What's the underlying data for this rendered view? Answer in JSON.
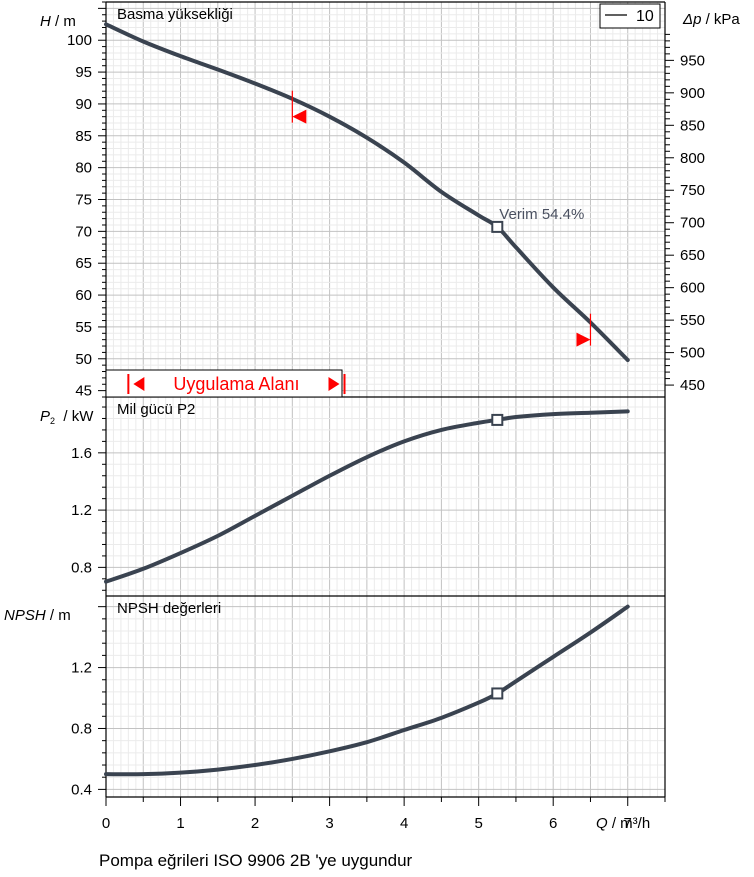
{
  "colors": {
    "curve": "#3a4350",
    "grid": "#d0d0d0",
    "axis": "#000000",
    "range_marker": "#ff0000"
  },
  "legend": {
    "label": "10"
  },
  "footer": {
    "text": "Pompa eğrileri ISO 9906 2B 'ye uygundur"
  },
  "chart_data": [
    {
      "type": "line",
      "title": "Basma yüksekliği",
      "ylabel_var": "H",
      "ylabel_unit": "/ m",
      "y2label_var": "Δp",
      "y2label_unit": "/ kPa",
      "xlim": [
        0,
        7.5
      ],
      "ylim": [
        44,
        106
      ],
      "y_ticks": [
        45,
        50,
        55,
        60,
        65,
        70,
        75,
        80,
        85,
        90,
        95,
        100
      ],
      "y2_ticks": [
        450,
        500,
        550,
        600,
        650,
        700,
        750,
        800,
        850,
        900,
        950
      ],
      "series": [
        {
          "name": "10",
          "x": [
            0,
            0.5,
            1,
            1.5,
            2,
            2.5,
            3,
            3.5,
            4,
            4.5,
            5,
            5.25,
            5.5,
            6,
            6.5,
            7
          ],
          "y": [
            102.5,
            99.8,
            97.5,
            95.4,
            93.2,
            90.8,
            88,
            84.7,
            80.8,
            76.2,
            72.5,
            70.7,
            67.5,
            61.2,
            55.7,
            49.8
          ]
        }
      ],
      "operating_point": {
        "x": 5.25,
        "y": 70.7
      },
      "annotation": {
        "label": "Verim",
        "value": "54.4%"
      },
      "range_markers": [
        {
          "x": 2.5,
          "y": 88
        },
        {
          "x": 6.5,
          "y": 53
        }
      ],
      "application_range": {
        "label": "Uygulama Alanı",
        "x_from": 0.3,
        "x_to": 3.2
      }
    },
    {
      "type": "line",
      "title": "Mil gücü P2",
      "ylabel_var": "P",
      "ylabel_sub": "2",
      "ylabel_unit": "/ kW",
      "xlim": [
        0,
        7.5
      ],
      "ylim": [
        0.6,
        1.99
      ],
      "y_ticks": [
        0.8,
        1.2,
        1.6
      ],
      "series": [
        {
          "name": "10",
          "x": [
            0,
            0.5,
            1,
            1.5,
            2,
            2.5,
            3,
            3.5,
            4,
            4.5,
            5,
            5.25,
            5.5,
            6,
            6.5,
            7
          ],
          "y": [
            0.7,
            0.79,
            0.9,
            1.02,
            1.16,
            1.3,
            1.44,
            1.57,
            1.68,
            1.76,
            1.81,
            1.83,
            1.85,
            1.87,
            1.88,
            1.89
          ]
        }
      ],
      "operating_point": {
        "x": 5.25,
        "y": 1.83
      }
    },
    {
      "type": "line",
      "title": "NPSH değerleri",
      "ylabel_var": "NPSH",
      "ylabel_unit": "/ m",
      "xlabel_var": "Q",
      "xlabel_unit": "/ m³/h",
      "xlim": [
        0,
        7.5
      ],
      "ylim": [
        0.35,
        1.67
      ],
      "y_ticks": [
        0.4,
        0.8,
        1.2
      ],
      "x_ticks": [
        0,
        1,
        2,
        3,
        4,
        5,
        6,
        7
      ],
      "series": [
        {
          "name": "10",
          "x": [
            0,
            0.5,
            1,
            1.5,
            2,
            2.5,
            3,
            3.5,
            4,
            4.5,
            5,
            5.25,
            5.5,
            6,
            6.5,
            7
          ],
          "y": [
            0.5,
            0.5,
            0.51,
            0.53,
            0.56,
            0.6,
            0.65,
            0.71,
            0.79,
            0.87,
            0.97,
            1.03,
            1.11,
            1.27,
            1.43,
            1.6
          ]
        }
      ],
      "operating_point": {
        "x": 5.25,
        "y": 1.03
      }
    }
  ]
}
